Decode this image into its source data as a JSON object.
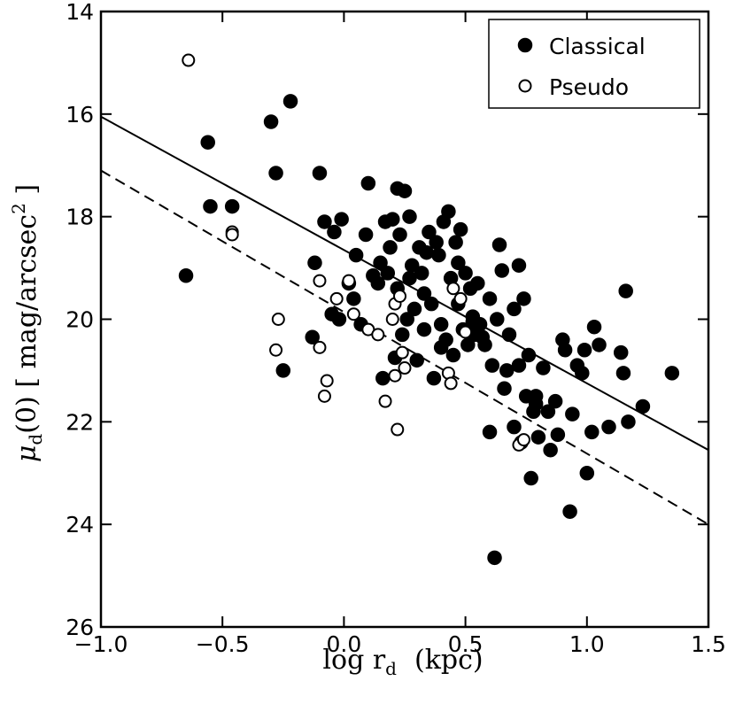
{
  "chart_data": {
    "type": "scatter",
    "xlabel": "log r",
    "xlabel_sub": "d",
    "xlabel_unit": "(kpc)",
    "ylabel_main": "μ",
    "ylabel_sub": "d",
    "ylabel_rest": "(0)  [ mag/arcsec",
    "ylabel_sup": "2",
    "ylabel_end": " ]",
    "xlim": [
      -1.0,
      1.5
    ],
    "ylim": [
      26,
      14
    ],
    "y_inverted": true,
    "xticks": [
      -1.0,
      -0.5,
      0.0,
      0.5,
      1.0,
      1.5
    ],
    "xtick_labels": [
      "−1.0",
      "−0.5",
      "0.0",
      "0.5",
      "1.0",
      "1.5"
    ],
    "yticks": [
      14,
      16,
      18,
      20,
      22,
      24,
      26
    ],
    "ytick_labels": [
      "14",
      "16",
      "18",
      "20",
      "22",
      "24",
      "26"
    ],
    "grid": false,
    "legend_position": "top-right",
    "series": [
      {
        "name": "Classical",
        "marker": "filled-circle",
        "color": "#000000",
        "points": [
          [
            -0.65,
            19.15
          ],
          [
            -0.56,
            16.55
          ],
          [
            -0.55,
            17.8
          ],
          [
            -0.46,
            17.8
          ],
          [
            -0.3,
            16.15
          ],
          [
            -0.28,
            17.15
          ],
          [
            -0.25,
            21.0
          ],
          [
            -0.22,
            15.75
          ],
          [
            -0.13,
            20.35
          ],
          [
            -0.12,
            18.9
          ],
          [
            -0.1,
            17.15
          ],
          [
            -0.08,
            18.1
          ],
          [
            -0.05,
            19.9
          ],
          [
            -0.04,
            18.3
          ],
          [
            -0.02,
            20.0
          ],
          [
            -0.01,
            18.05
          ],
          [
            0.02,
            19.3
          ],
          [
            0.04,
            19.6
          ],
          [
            0.05,
            18.75
          ],
          [
            0.07,
            20.1
          ],
          [
            0.09,
            18.35
          ],
          [
            0.1,
            17.35
          ],
          [
            0.12,
            19.15
          ],
          [
            0.14,
            19.3
          ],
          [
            0.15,
            18.9
          ],
          [
            0.16,
            21.15
          ],
          [
            0.17,
            18.1
          ],
          [
            0.18,
            19.1
          ],
          [
            0.19,
            18.6
          ],
          [
            0.2,
            18.05
          ],
          [
            0.21,
            20.75
          ],
          [
            0.22,
            19.4
          ],
          [
            0.23,
            18.35
          ],
          [
            0.24,
            20.3
          ],
          [
            0.25,
            17.5
          ],
          [
            0.26,
            20.0
          ],
          [
            0.27,
            19.2
          ],
          [
            0.28,
            18.95
          ],
          [
            0.29,
            19.8
          ],
          [
            0.3,
            20.8
          ],
          [
            0.31,
            18.6
          ],
          [
            0.32,
            19.1
          ],
          [
            0.33,
            19.5
          ],
          [
            0.34,
            18.7
          ],
          [
            0.35,
            18.3
          ],
          [
            0.36,
            19.7
          ],
          [
            0.37,
            21.15
          ],
          [
            0.38,
            18.5
          ],
          [
            0.39,
            18.75
          ],
          [
            0.4,
            20.1
          ],
          [
            0.41,
            18.1
          ],
          [
            0.42,
            20.4
          ],
          [
            0.43,
            17.9
          ],
          [
            0.44,
            19.2
          ],
          [
            0.45,
            20.7
          ],
          [
            0.46,
            18.5
          ],
          [
            0.47,
            19.7
          ],
          [
            0.48,
            18.25
          ],
          [
            0.49,
            20.2
          ],
          [
            0.5,
            19.1
          ],
          [
            0.51,
            20.5
          ],
          [
            0.52,
            19.4
          ],
          [
            0.53,
            19.95
          ],
          [
            0.54,
            20.3
          ],
          [
            0.55,
            19.3
          ],
          [
            0.56,
            20.1
          ],
          [
            0.58,
            20.5
          ],
          [
            0.6,
            19.6
          ],
          [
            0.6,
            22.2
          ],
          [
            0.61,
            20.9
          ],
          [
            0.62,
            24.65
          ],
          [
            0.63,
            20.0
          ],
          [
            0.64,
            18.55
          ],
          [
            0.65,
            19.05
          ],
          [
            0.67,
            21.0
          ],
          [
            0.68,
            20.3
          ],
          [
            0.7,
            19.8
          ],
          [
            0.72,
            20.9
          ],
          [
            0.73,
            22.4
          ],
          [
            0.74,
            19.6
          ],
          [
            0.75,
            21.5
          ],
          [
            0.76,
            20.7
          ],
          [
            0.77,
            23.1
          ],
          [
            0.78,
            21.8
          ],
          [
            0.79,
            21.5
          ],
          [
            0.8,
            22.3
          ],
          [
            0.82,
            20.95
          ],
          [
            0.84,
            21.8
          ],
          [
            0.85,
            22.55
          ],
          [
            0.87,
            21.6
          ],
          [
            0.88,
            22.25
          ],
          [
            0.9,
            20.4
          ],
          [
            0.91,
            20.6
          ],
          [
            0.93,
            23.75
          ],
          [
            0.94,
            21.85
          ],
          [
            0.96,
            20.9
          ],
          [
            0.98,
            21.05
          ],
          [
            0.99,
            20.6
          ],
          [
            1.0,
            23.0
          ],
          [
            1.02,
            22.2
          ],
          [
            1.03,
            20.15
          ],
          [
            1.05,
            20.5
          ],
          [
            1.09,
            22.1
          ],
          [
            1.14,
            20.65
          ],
          [
            1.15,
            21.05
          ],
          [
            1.16,
            19.45
          ],
          [
            1.17,
            22.0
          ],
          [
            1.23,
            21.7
          ],
          [
            1.35,
            21.05
          ],
          [
            0.72,
            18.95
          ],
          [
            0.27,
            18.0
          ],
          [
            0.22,
            17.45
          ],
          [
            0.33,
            20.2
          ],
          [
            0.4,
            20.55
          ],
          [
            0.47,
            18.9
          ],
          [
            0.53,
            20.05
          ],
          [
            0.57,
            20.35
          ],
          [
            0.66,
            21.35
          ],
          [
            0.7,
            22.1
          ],
          [
            0.79,
            21.65
          ]
        ]
      },
      {
        "name": "Pseudo",
        "marker": "open-circle",
        "color": "#000000",
        "points": [
          [
            -0.64,
            14.95
          ],
          [
            -0.46,
            18.3
          ],
          [
            -0.46,
            18.35
          ],
          [
            -0.28,
            20.6
          ],
          [
            -0.27,
            20.0
          ],
          [
            -0.1,
            20.55
          ],
          [
            -0.1,
            19.25
          ],
          [
            -0.08,
            21.5
          ],
          [
            -0.07,
            21.2
          ],
          [
            -0.03,
            19.6
          ],
          [
            0.02,
            19.25
          ],
          [
            0.04,
            19.9
          ],
          [
            0.1,
            20.2
          ],
          [
            0.14,
            20.3
          ],
          [
            0.17,
            21.6
          ],
          [
            0.2,
            20.0
          ],
          [
            0.21,
            19.7
          ],
          [
            0.21,
            21.1
          ],
          [
            0.22,
            22.15
          ],
          [
            0.23,
            19.55
          ],
          [
            0.25,
            20.95
          ],
          [
            0.43,
            21.05
          ],
          [
            0.44,
            21.25
          ],
          [
            0.45,
            19.4
          ],
          [
            0.48,
            19.6
          ],
          [
            0.5,
            20.25
          ],
          [
            0.72,
            22.45
          ],
          [
            0.74,
            22.35
          ],
          [
            0.24,
            20.65
          ]
        ]
      }
    ],
    "fit_lines": [
      {
        "style": "solid",
        "x": [
          -1.0,
          1.5
        ],
        "y": [
          16.05,
          22.55
        ]
      },
      {
        "style": "dashed",
        "x": [
          -1.0,
          1.5
        ],
        "y": [
          17.1,
          24.0
        ]
      }
    ]
  }
}
